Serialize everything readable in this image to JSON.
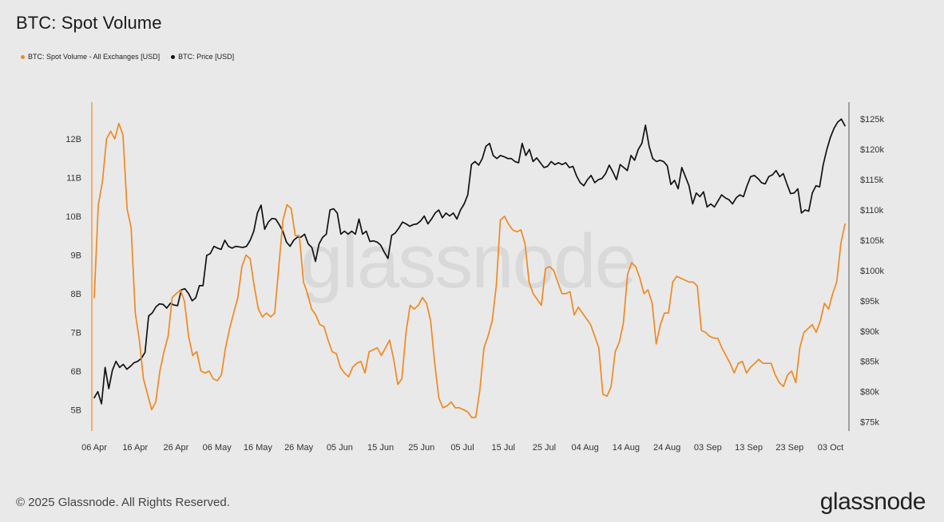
{
  "title": "BTC: Spot Volume",
  "footer": "© 2025 Glassnode. All Rights Reserved.",
  "brand": "glassnode",
  "watermark": "glassnode",
  "colors": {
    "volume": "#f0891f",
    "price": "#111111",
    "background": "#e9e9e9"
  },
  "chart_data": {
    "type": "line",
    "legend_position": "top-left",
    "grid": false,
    "series": [
      {
        "name": "BTC: Spot Volume - All Exchanges [USD]",
        "axis": "left",
        "values": [
          7.9,
          10.3,
          10.9,
          12.0,
          12.2,
          12.0,
          12.4,
          12.1,
          10.2,
          9.7,
          7.5,
          6.8,
          5.8,
          5.4,
          5.0,
          5.2,
          6.0,
          6.5,
          6.9,
          7.9,
          8.0,
          8.1,
          7.8,
          6.9,
          6.4,
          6.5,
          6.0,
          5.95,
          6.0,
          5.8,
          5.75,
          5.9,
          6.6,
          7.1,
          7.5,
          7.9,
          8.7,
          9.0,
          8.9,
          8.2,
          7.6,
          7.4,
          7.5,
          7.4,
          7.5,
          8.7,
          9.9,
          10.3,
          10.2,
          9.5,
          9.5,
          8.3,
          8.0,
          7.6,
          7.45,
          7.2,
          7.15,
          6.8,
          6.5,
          6.45,
          6.1,
          5.95,
          5.85,
          6.1,
          6.2,
          6.25,
          5.95,
          6.5,
          6.55,
          6.6,
          6.4,
          6.6,
          6.8,
          6.3,
          5.65,
          5.8,
          7.0,
          7.7,
          7.6,
          7.7,
          7.9,
          7.75,
          7.3,
          6.2,
          5.3,
          5.05,
          5.1,
          5.2,
          5.05,
          5.05,
          5.0,
          4.95,
          4.8,
          4.8,
          5.5,
          6.6,
          6.9,
          7.3,
          8.2,
          9.9,
          10.0,
          9.8,
          9.65,
          9.6,
          9.65,
          9.3,
          8.3,
          8.0,
          7.85,
          7.7,
          8.65,
          8.7,
          8.6,
          8.3,
          8.0,
          8.0,
          8.05,
          7.45,
          7.65,
          7.5,
          7.35,
          7.2,
          6.9,
          6.6,
          5.4,
          5.35,
          5.6,
          6.5,
          6.75,
          7.25,
          8.5,
          8.8,
          8.7,
          8.4,
          8.0,
          8.1,
          7.75,
          6.7,
          7.2,
          7.5,
          7.5,
          8.3,
          8.45,
          8.4,
          8.35,
          8.3,
          8.3,
          8.2,
          7.05,
          7.0,
          6.9,
          6.85,
          6.85,
          6.6,
          6.4,
          6.2,
          5.95,
          6.2,
          6.25,
          5.95,
          6.1,
          6.2,
          6.3,
          6.2,
          6.2,
          6.2,
          5.9,
          5.7,
          5.6,
          5.9,
          6.0,
          5.7,
          6.6,
          7.0,
          7.1,
          7.2,
          7.0,
          7.3,
          7.75,
          7.6,
          8.0,
          8.3,
          9.3,
          9.8
        ]
      },
      {
        "name": "BTC: Price [USD]",
        "axis": "right",
        "values": [
          79000,
          80000,
          78000,
          84000,
          80500,
          83500,
          85000,
          84000,
          84500,
          83700,
          84200,
          84800,
          85000,
          85500,
          86500,
          92500,
          93000,
          94000,
          94500,
          94400,
          93800,
          94600,
          94300,
          94200,
          96800,
          97000,
          96200,
          95000,
          95500,
          97500,
          97500,
          102500,
          102800,
          104000,
          103700,
          103500,
          105000,
          104000,
          103700,
          104000,
          103900,
          103800,
          104000,
          105000,
          106500,
          109500,
          110800,
          106800,
          108000,
          108600,
          108500,
          107600,
          106500,
          104700,
          104000,
          105000,
          105500,
          105500,
          106000,
          104400,
          103800,
          101500,
          104400,
          105500,
          106000,
          110000,
          110200,
          109500,
          106000,
          106500,
          106000,
          106500,
          106000,
          108500,
          106000,
          106500,
          104800,
          104900,
          104700,
          104200,
          103000,
          102000,
          105800,
          106200,
          107000,
          108000,
          107700,
          107300,
          107600,
          107700,
          108200,
          109000,
          107700,
          108500,
          109500,
          110000,
          108700,
          109500,
          109000,
          109500,
          108500,
          110000,
          111000,
          112500,
          117500,
          118000,
          117400,
          118500,
          120500,
          121000,
          119000,
          118500,
          119000,
          118800,
          118500,
          118500,
          118000,
          117800,
          121000,
          119000,
          120000,
          118000,
          118600,
          117800,
          117000,
          117200,
          118000,
          117500,
          117800,
          117500,
          117800,
          117000,
          117200,
          115600,
          114500,
          114000,
          115000,
          115700,
          114500,
          115000,
          115200,
          116000,
          117400,
          116300,
          115000,
          117500,
          117000,
          116500,
          119000,
          118200,
          120000,
          121000,
          124000,
          120500,
          118500,
          118000,
          118200,
          118000,
          117300,
          114200,
          114900,
          113500,
          117000,
          115500,
          114000,
          111000,
          112800,
          112200,
          113000,
          110500,
          111000,
          110500,
          111500,
          112500,
          112000,
          111700,
          111000,
          112000,
          112500,
          112200,
          114000,
          115500,
          115700,
          115200,
          114500,
          114300,
          115500,
          115800,
          116500,
          115500,
          116000,
          114300,
          112700,
          112800,
          113500,
          109500,
          110000,
          109800,
          112800,
          114000,
          113800,
          117500,
          120000,
          122000,
          123500,
          124500,
          125000,
          123900
        ]
      }
    ],
    "x_axis": {
      "type": "date",
      "ticks": [
        "06 Apr",
        "16 Apr",
        "26 Apr",
        "06 May",
        "16 May",
        "26 May",
        "05 Jun",
        "15 Jun",
        "25 Jun",
        "05 Jul",
        "15 Jul",
        "25 Jul",
        "04 Aug",
        "14 Aug",
        "24 Aug",
        "03 Sep",
        "13 Sep",
        "23 Sep",
        "03 Oct"
      ]
    },
    "y_left": {
      "ticks": [
        "5B",
        "6B",
        "7B",
        "8B",
        "9B",
        "10B",
        "11B",
        "12B"
      ],
      "range": [
        4.45,
        12.95
      ]
    },
    "y_right": {
      "ticks": [
        "$75k",
        "$80k",
        "$85k",
        "$90k",
        "$95k",
        "$100k",
        "$105k",
        "$110k",
        "$115k",
        "$120k",
        "$125k"
      ],
      "range": [
        73500,
        127800
      ]
    }
  }
}
